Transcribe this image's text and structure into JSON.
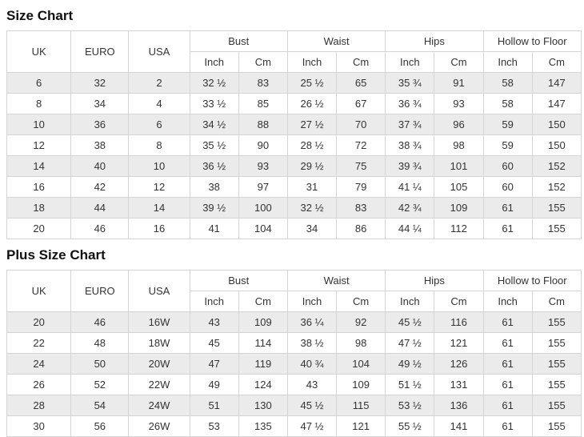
{
  "accent_colors": {
    "row_stripe": "#ebebeb",
    "border": "#d4d4d4",
    "text": "#333333"
  },
  "chart_data": [
    {
      "type": "table",
      "title": "Size Chart",
      "single_columns": [
        "UK",
        "EURO",
        "USA"
      ],
      "groups": [
        "Bust",
        "Waist",
        "Hips",
        "Hollow to Floor"
      ],
      "sub_labels": [
        "Inch",
        "Cm"
      ],
      "rows": [
        [
          "6",
          "32",
          "2",
          "32 ½",
          "83",
          "25 ½",
          "65",
          "35 ¾",
          "91",
          "58",
          "147"
        ],
        [
          "8",
          "34",
          "4",
          "33 ½",
          "85",
          "26 ½",
          "67",
          "36 ¾",
          "93",
          "58",
          "147"
        ],
        [
          "10",
          "36",
          "6",
          "34 ½",
          "88",
          "27 ½",
          "70",
          "37 ¾",
          "96",
          "59",
          "150"
        ],
        [
          "12",
          "38",
          "8",
          "35 ½",
          "90",
          "28 ½",
          "72",
          "38 ¾",
          "98",
          "59",
          "150"
        ],
        [
          "14",
          "40",
          "10",
          "36 ½",
          "93",
          "29 ½",
          "75",
          "39 ¾",
          "101",
          "60",
          "152"
        ],
        [
          "16",
          "42",
          "12",
          "38",
          "97",
          "31",
          "79",
          "41 ¼",
          "105",
          "60",
          "152"
        ],
        [
          "18",
          "44",
          "14",
          "39 ½",
          "100",
          "32 ½",
          "83",
          "42 ¾",
          "109",
          "61",
          "155"
        ],
        [
          "20",
          "46",
          "16",
          "41",
          "104",
          "34",
          "86",
          "44 ¼",
          "112",
          "61",
          "155"
        ]
      ]
    },
    {
      "type": "table",
      "title": "Plus Size Chart",
      "single_columns": [
        "UK",
        "EURO",
        "USA"
      ],
      "groups": [
        "Bust",
        "Waist",
        "Hips",
        "Hollow to Floor"
      ],
      "sub_labels": [
        "Inch",
        "Cm"
      ],
      "rows": [
        [
          "20",
          "46",
          "16W",
          "43",
          "109",
          "36 ¼",
          "92",
          "45 ½",
          "116",
          "61",
          "155"
        ],
        [
          "22",
          "48",
          "18W",
          "45",
          "114",
          "38 ½",
          "98",
          "47 ½",
          "121",
          "61",
          "155"
        ],
        [
          "24",
          "50",
          "20W",
          "47",
          "119",
          "40 ¾",
          "104",
          "49 ½",
          "126",
          "61",
          "155"
        ],
        [
          "26",
          "52",
          "22W",
          "49",
          "124",
          "43",
          "109",
          "51 ½",
          "131",
          "61",
          "155"
        ],
        [
          "28",
          "54",
          "24W",
          "51",
          "130",
          "45 ½",
          "115",
          "53 ½",
          "136",
          "61",
          "155"
        ],
        [
          "30",
          "56",
          "26W",
          "53",
          "135",
          "47 ½",
          "121",
          "55 ½",
          "141",
          "61",
          "155"
        ]
      ]
    }
  ],
  "layout": {
    "single_col_widths": [
      80,
      72,
      76
    ],
    "data_col_width": 61
  }
}
